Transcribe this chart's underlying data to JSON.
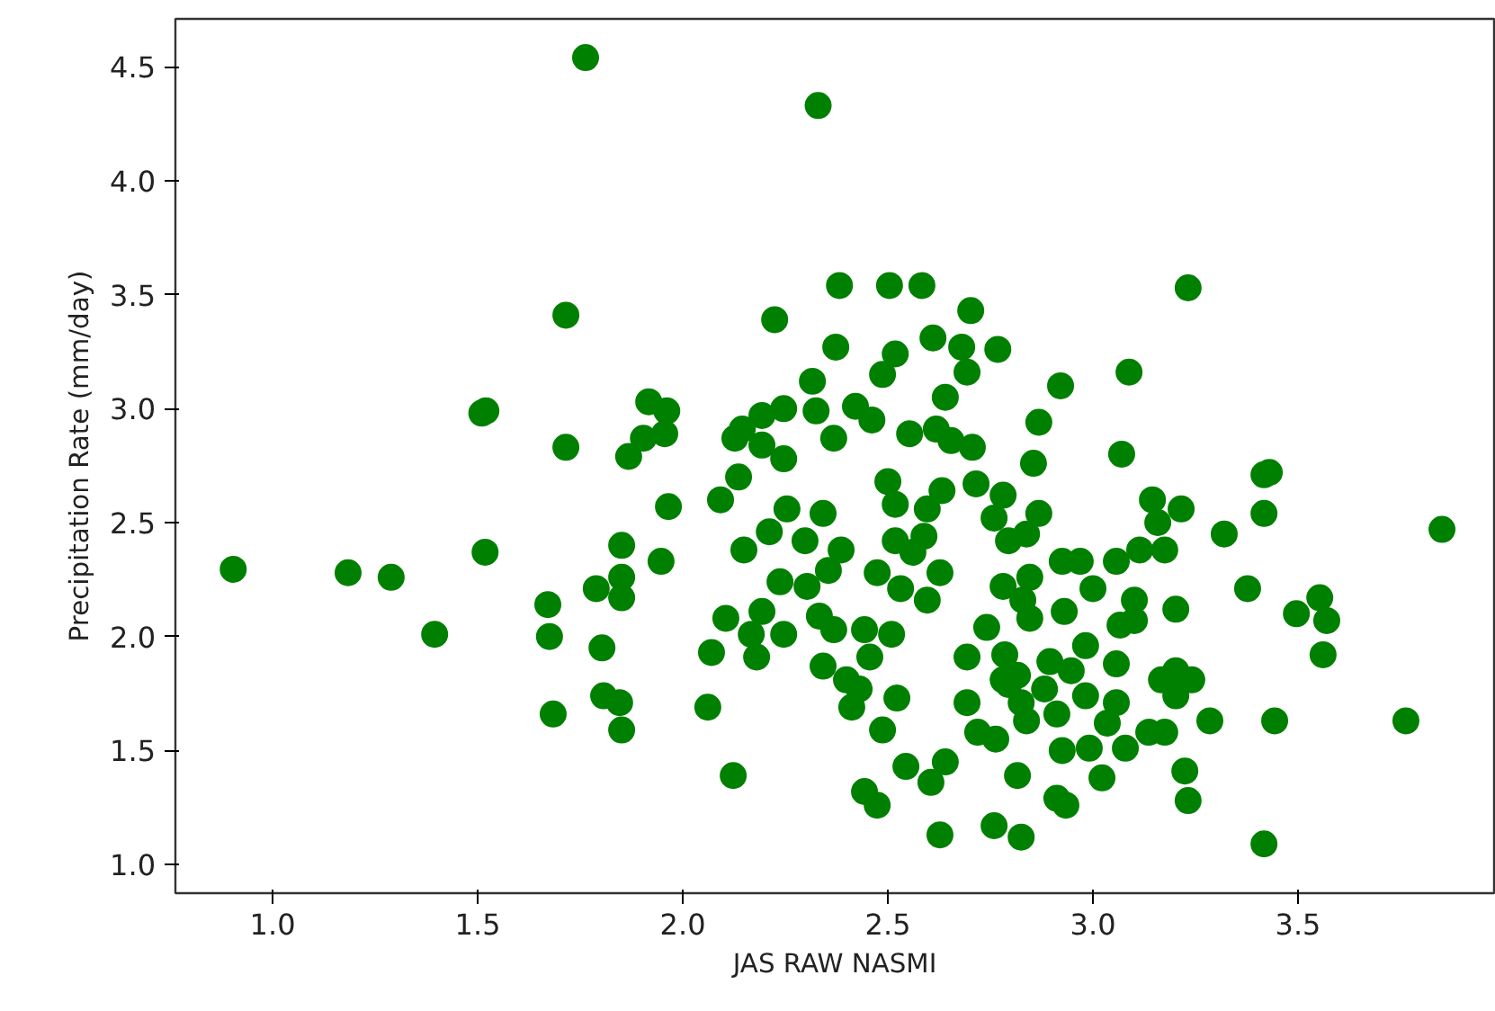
{
  "chart_data": {
    "type": "scatter",
    "xlabel": "JAS RAW NASMI",
    "ylabel": "Precipitation Rate (mm/day)",
    "xlim": [
      0.763,
      3.978
    ],
    "ylim": [
      0.874,
      4.71
    ],
    "xticks": [
      {
        "value": 1.0,
        "label": "1.0"
      },
      {
        "value": 1.5,
        "label": "1.5"
      },
      {
        "value": 2.0,
        "label": "2.0"
      },
      {
        "value": 2.5,
        "label": "2.5"
      },
      {
        "value": 3.0,
        "label": "3.0"
      },
      {
        "value": 3.5,
        "label": "3.5"
      }
    ],
    "yticks": [
      {
        "value": 1.0,
        "label": "1.0"
      },
      {
        "value": 1.5,
        "label": "1.5"
      },
      {
        "value": 2.0,
        "label": "2.0"
      },
      {
        "value": 2.5,
        "label": "2.5"
      },
      {
        "value": 3.0,
        "label": "3.0"
      },
      {
        "value": 3.5,
        "label": "3.5"
      },
      {
        "value": 4.0,
        "label": "4.0"
      },
      {
        "value": 4.5,
        "label": "4.5"
      }
    ],
    "grid": false,
    "marker": "circle",
    "series": [
      {
        "color": "#008000",
        "x": [
          0.904,
          1.184,
          1.289,
          1.395,
          1.51,
          1.52,
          1.518,
          1.715,
          1.763,
          1.715,
          1.671,
          1.675,
          1.684,
          1.917,
          1.961,
          1.904,
          1.956,
          1.868,
          1.965,
          1.947,
          1.851,
          1.789,
          1.851,
          1.851,
          1.803,
          1.807,
          1.846,
          1.851,
          2.33,
          2.224,
          2.382,
          2.504,
          2.583,
          2.702,
          2.373,
          2.61,
          2.68,
          2.768,
          2.518,
          2.487,
          2.693,
          2.921,
          2.316,
          2.64,
          2.421,
          2.461,
          2.325,
          2.246,
          2.193,
          2.145,
          2.127,
          2.193,
          2.246,
          2.368,
          2.553,
          2.618,
          2.654,
          2.706,
          2.868,
          2.855,
          2.5,
          2.518,
          2.632,
          2.715,
          2.781,
          2.759,
          2.868,
          2.596,
          2.136,
          2.092,
          2.254,
          2.342,
          2.211,
          2.149,
          2.298,
          2.386,
          2.518,
          2.588,
          2.794,
          2.838,
          2.925,
          2.237,
          2.303,
          2.355,
          2.474,
          2.531,
          2.596,
          2.627,
          2.561,
          2.781,
          2.846,
          2.105,
          2.193,
          2.246,
          2.167,
          2.18,
          2.07,
          2.333,
          2.368,
          2.443,
          2.509,
          2.456,
          2.342,
          2.399,
          2.43,
          2.412,
          2.522,
          2.487,
          2.061,
          2.123,
          2.443,
          2.474,
          2.544,
          2.605,
          2.64,
          2.627,
          2.759,
          2.825,
          2.741,
          2.693,
          2.785,
          2.846,
          2.829,
          2.693,
          2.719,
          2.763,
          2.794,
          2.825,
          2.838,
          2.895,
          2.882,
          2.912,
          2.816,
          2.912,
          2.925,
          2.781,
          2.816,
          3.232,
          3.088,
          3.07,
          3.43,
          3.417,
          3.145,
          3.215,
          3.158,
          3.417,
          3.32,
          3.851,
          3.114,
          3.175,
          3.057,
          2.969,
          3.0,
          3.101,
          3.101,
          3.066,
          3.202,
          3.377,
          3.496,
          3.553,
          3.57,
          3.561,
          3.057,
          3.202,
          3.167,
          3.241,
          3.202,
          2.982,
          2.947,
          2.982,
          3.057,
          3.035,
          3.136,
          3.175,
          3.285,
          3.443,
          3.763,
          3.079,
          2.991,
          3.022,
          2.934,
          3.224,
          3.232,
          3.417,
          2.93
        ],
        "values": [
          2.295,
          2.28,
          2.26,
          2.01,
          2.98,
          2.99,
          2.37,
          3.41,
          4.54,
          2.83,
          2.14,
          2.0,
          1.66,
          3.03,
          2.99,
          2.87,
          2.89,
          2.79,
          2.57,
          2.33,
          2.4,
          2.21,
          2.26,
          2.17,
          1.95,
          1.74,
          1.71,
          1.59,
          4.33,
          3.39,
          3.54,
          3.54,
          3.54,
          3.43,
          3.27,
          3.31,
          3.27,
          3.26,
          3.24,
          3.15,
          3.16,
          3.1,
          3.12,
          3.05,
          3.01,
          2.95,
          2.99,
          3.0,
          2.97,
          2.91,
          2.87,
          2.84,
          2.78,
          2.87,
          2.89,
          2.91,
          2.86,
          2.83,
          2.94,
          2.76,
          2.68,
          2.58,
          2.64,
          2.67,
          2.62,
          2.52,
          2.54,
          2.56,
          2.7,
          2.6,
          2.56,
          2.54,
          2.46,
          2.38,
          2.42,
          2.38,
          2.42,
          2.44,
          2.42,
          2.45,
          2.33,
          2.24,
          2.22,
          2.29,
          2.28,
          2.21,
          2.16,
          2.28,
          2.37,
          2.22,
          2.26,
          2.08,
          2.11,
          2.01,
          2.01,
          1.91,
          1.93,
          2.09,
          2.03,
          2.03,
          2.01,
          1.91,
          1.87,
          1.81,
          1.77,
          1.69,
          1.73,
          1.59,
          1.69,
          1.39,
          1.32,
          1.26,
          1.43,
          1.36,
          1.45,
          1.13,
          1.17,
          1.12,
          2.04,
          1.91,
          1.92,
          2.08,
          2.16,
          1.71,
          1.58,
          1.55,
          1.79,
          1.71,
          1.63,
          1.89,
          1.77,
          1.66,
          1.39,
          1.29,
          1.5,
          1.81,
          1.83,
          3.53,
          3.16,
          2.8,
          2.72,
          2.71,
          2.6,
          2.56,
          2.5,
          2.54,
          2.45,
          2.47,
          2.38,
          2.38,
          2.33,
          2.33,
          2.21,
          2.16,
          2.07,
          2.05,
          2.12,
          2.21,
          2.1,
          2.17,
          2.07,
          1.92,
          1.88,
          1.85,
          1.81,
          1.81,
          1.74,
          1.96,
          1.85,
          1.74,
          1.71,
          1.62,
          1.58,
          1.58,
          1.63,
          1.63,
          1.63,
          1.51,
          1.51,
          1.38,
          1.26,
          1.41,
          1.28,
          1.09,
          2.11
        ]
      }
    ]
  }
}
